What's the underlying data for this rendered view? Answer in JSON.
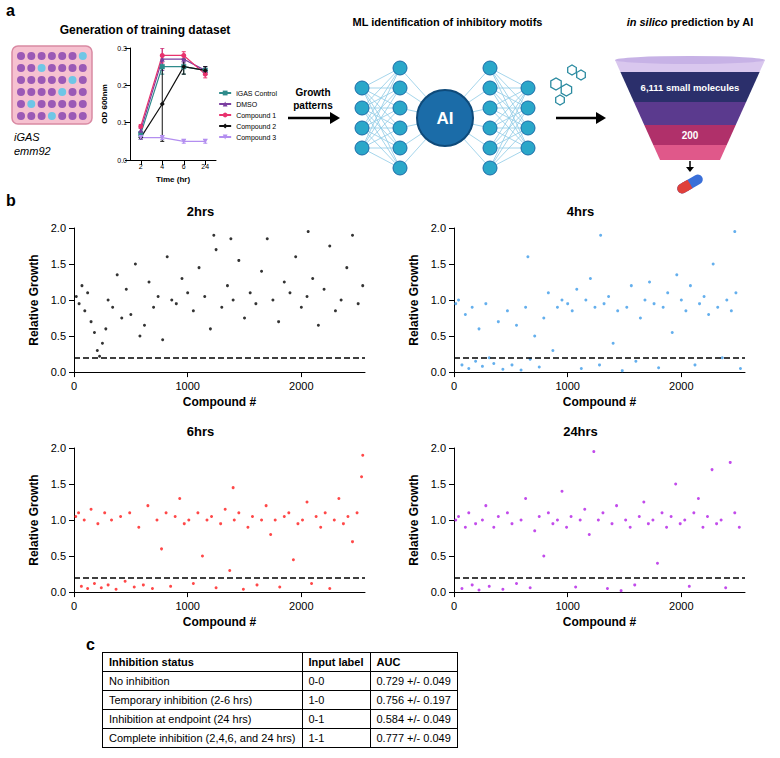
{
  "diagram": {
    "label": "a",
    "training_title": "Generation of training dataset",
    "strain": "iGAS",
    "serotype": "emm92",
    "arrow_text": "Growth patterns",
    "ml_title": "ML identification of inhibitory motifs",
    "ai_label": "AI",
    "prediction_title_italic": "in silico",
    "prediction_title": "prediction by AI",
    "funnel_top": "6,111 small molecules",
    "funnel_bottom": "200"
  },
  "scatter_panel_label": "b",
  "chart_data": [
    {
      "type": "line",
      "x_label": "Time (hr)",
      "y_label": "OD 600nm",
      "categories": [
        "2",
        "4",
        "6",
        "24"
      ],
      "ylim": [
        0,
        0.3
      ],
      "yticks": [
        {
          "value": 0,
          "label": "0.0"
        },
        {
          "value": 0.1,
          "label": "0.1"
        },
        {
          "value": 0.2,
          "label": "0.2"
        },
        {
          "value": 0.3,
          "label": "0.3"
        }
      ],
      "legend": "right",
      "series": [
        {
          "name": "iGAS Control",
          "color": "#2e8b8b",
          "marker": "square",
          "values": [
            0.07,
            0.25,
            0.25,
            0.24
          ],
          "errors": [
            0.005,
            0.02,
            0.02,
            0.01
          ]
        },
        {
          "name": "DMSO",
          "color": "#7b3fa0",
          "marker": "triangle",
          "values": [
            0.08,
            0.27,
            0.27,
            0.24
          ],
          "errors": [
            0.005,
            0.03,
            0.01,
            0.01
          ]
        },
        {
          "name": "Compound 1",
          "color": "#e8336e",
          "marker": "circle",
          "values": [
            0.09,
            0.28,
            0.28,
            0.23
          ],
          "errors": [
            0.005,
            0.02,
            0.01,
            0.01
          ]
        },
        {
          "name": "Compound 2",
          "color": "#111111",
          "marker": "diamond",
          "values": [
            0.06,
            0.15,
            0.25,
            0.24
          ],
          "errors": [
            0.005,
            0.1,
            0.02,
            0.01
          ]
        },
        {
          "name": "Compound 3",
          "color": "#b38ef0",
          "marker": "triangle-down",
          "values": [
            0.06,
            0.06,
            0.05,
            0.05
          ],
          "errors": [
            0.005,
            0.005,
            0.005,
            0.005
          ]
        }
      ]
    },
    {
      "type": "scatter",
      "title": "2hrs",
      "x_label": "Compound #",
      "y_label": "Relative Growth",
      "color": "#000000",
      "marker": "circle",
      "xlim": [
        0,
        2560
      ],
      "xticks": [
        0,
        1000,
        2000
      ],
      "ylim": [
        0,
        2
      ],
      "yticks": [
        {
          "value": 0,
          "label": "0.0"
        },
        {
          "value": 0.5,
          "label": "0.5"
        },
        {
          "value": 1,
          "label": "1.0"
        },
        {
          "value": 1.5,
          "label": "1.5"
        },
        {
          "value": 2,
          "label": "2.0"
        }
      ],
      "threshold": 0.2,
      "values": [
        [
          20,
          1.05
        ],
        [
          45,
          0.95
        ],
        [
          70,
          1.2
        ],
        [
          95,
          0.85
        ],
        [
          120,
          1.1
        ],
        [
          150,
          0.7
        ],
        [
          180,
          0.55
        ],
        [
          205,
          0.3
        ],
        [
          225,
          0.22
        ],
        [
          250,
          0.4
        ],
        [
          280,
          0.6
        ],
        [
          300,
          1.0
        ],
        [
          340,
          0.9
        ],
        [
          380,
          1.35
        ],
        [
          420,
          0.75
        ],
        [
          460,
          1.15
        ],
        [
          500,
          0.8
        ],
        [
          540,
          1.5
        ],
        [
          580,
          0.5
        ],
        [
          620,
          0.65
        ],
        [
          660,
          1.25
        ],
        [
          700,
          0.9
        ],
        [
          740,
          1.05
        ],
        [
          780,
          0.45
        ],
        [
          820,
          1.6
        ],
        [
          860,
          1.0
        ],
        [
          900,
          0.95
        ],
        [
          950,
          1.3
        ],
        [
          1000,
          1.1
        ],
        [
          1050,
          0.85
        ],
        [
          1100,
          1.45
        ],
        [
          1150,
          1.05
        ],
        [
          1200,
          0.6
        ],
        [
          1230,
          1.9
        ],
        [
          1250,
          1.7
        ],
        [
          1300,
          0.9
        ],
        [
          1350,
          1.2
        ],
        [
          1380,
          1.85
        ],
        [
          1400,
          1.0
        ],
        [
          1450,
          1.55
        ],
        [
          1500,
          0.75
        ],
        [
          1550,
          1.1
        ],
        [
          1600,
          0.95
        ],
        [
          1650,
          1.4
        ],
        [
          1700,
          1.85
        ],
        [
          1750,
          1.0
        ],
        [
          1800,
          0.7
        ],
        [
          1850,
          1.25
        ],
        [
          1900,
          1.1
        ],
        [
          1950,
          1.6
        ],
        [
          2000,
          0.9
        ],
        [
          2050,
          1.05
        ],
        [
          2060,
          1.95
        ],
        [
          2100,
          1.3
        ],
        [
          2150,
          0.65
        ],
        [
          2200,
          1.15
        ],
        [
          2250,
          1.75
        ],
        [
          2300,
          0.85
        ],
        [
          2350,
          1.0
        ],
        [
          2400,
          1.45
        ],
        [
          2450,
          1.9
        ],
        [
          2500,
          0.95
        ],
        [
          2540,
          1.2
        ]
      ]
    },
    {
      "type": "scatter",
      "title": "4hrs",
      "x_label": "Compound #",
      "y_label": "Relative Growth",
      "color": "#3d9be9",
      "marker": "circle",
      "xlim": [
        0,
        2560
      ],
      "xticks": [
        0,
        1000,
        2000
      ],
      "ylim": [
        0,
        2
      ],
      "yticks": [
        {
          "value": 0,
          "label": "0.0"
        },
        {
          "value": 0.5,
          "label": "0.5"
        },
        {
          "value": 1,
          "label": "1.0"
        },
        {
          "value": 1.5,
          "label": "1.5"
        },
        {
          "value": 2,
          "label": "2.0"
        }
      ],
      "threshold": 0.2,
      "values": [
        [
          15,
          0.95
        ],
        [
          40,
          1.0
        ],
        [
          70,
          0.1
        ],
        [
          100,
          0.8
        ],
        [
          130,
          0.05
        ],
        [
          160,
          0.9
        ],
        [
          190,
          0.15
        ],
        [
          220,
          0.6
        ],
        [
          250,
          0.08
        ],
        [
          280,
          0.95
        ],
        [
          310,
          0.2
        ],
        [
          350,
          0.12
        ],
        [
          390,
          0.7
        ],
        [
          430,
          0.04
        ],
        [
          470,
          0.85
        ],
        [
          510,
          0.1
        ],
        [
          550,
          0.65
        ],
        [
          590,
          0.03
        ],
        [
          630,
          0.9
        ],
        [
          650,
          1.6
        ],
        [
          670,
          0.18
        ],
        [
          710,
          0.5
        ],
        [
          750,
          0.07
        ],
        [
          790,
          0.75
        ],
        [
          830,
          1.1
        ],
        [
          870,
          0.3
        ],
        [
          910,
          0.9
        ],
        [
          950,
          1.0
        ],
        [
          1000,
          0.95
        ],
        [
          1040,
          0.85
        ],
        [
          1080,
          1.15
        ],
        [
          1120,
          0.05
        ],
        [
          1160,
          1.0
        ],
        [
          1200,
          1.3
        ],
        [
          1240,
          0.9
        ],
        [
          1280,
          0.1
        ],
        [
          1290,
          1.9
        ],
        [
          1320,
          0.95
        ],
        [
          1360,
          1.05
        ],
        [
          1400,
          0.4
        ],
        [
          1440,
          0.85
        ],
        [
          1480,
          0.02
        ],
        [
          1520,
          0.9
        ],
        [
          1560,
          1.2
        ],
        [
          1600,
          0.15
        ],
        [
          1640,
          0.75
        ],
        [
          1680,
          1.0
        ],
        [
          1720,
          1.25
        ],
        [
          1760,
          0.95
        ],
        [
          1800,
          0.06
        ],
        [
          1840,
          0.9
        ],
        [
          1880,
          1.1
        ],
        [
          1920,
          0.55
        ],
        [
          1960,
          1.35
        ],
        [
          2000,
          1.0
        ],
        [
          2040,
          0.85
        ],
        [
          2080,
          1.2
        ],
        [
          2120,
          0.1
        ],
        [
          2160,
          0.95
        ],
        [
          2200,
          1.05
        ],
        [
          2240,
          0.8
        ],
        [
          2280,
          1.5
        ],
        [
          2320,
          0.9
        ],
        [
          2360,
          0.2
        ],
        [
          2400,
          1.0
        ],
        [
          2440,
          0.85
        ],
        [
          2470,
          1.95
        ],
        [
          2480,
          1.1
        ],
        [
          2520,
          0.05
        ]
      ]
    },
    {
      "type": "scatter",
      "title": "6hrs",
      "x_label": "Compound #",
      "y_label": "Relative Growth",
      "color": "#ff1a1a",
      "marker": "circle",
      "xlim": [
        0,
        2560
      ],
      "xticks": [
        0,
        1000,
        2000
      ],
      "ylim": [
        0,
        2
      ],
      "yticks": [
        {
          "value": 0,
          "label": "0.0"
        },
        {
          "value": 0.5,
          "label": "0.5"
        },
        {
          "value": 1,
          "label": "1.0"
        },
        {
          "value": 1.5,
          "label": "1.5"
        },
        {
          "value": 2,
          "label": "2.0"
        }
      ],
      "threshold": 0.2,
      "values": [
        [
          15,
          1.05
        ],
        [
          40,
          1.1
        ],
        [
          65,
          0.08
        ],
        [
          90,
          1.0
        ],
        [
          120,
          0.05
        ],
        [
          150,
          1.15
        ],
        [
          180,
          0.12
        ],
        [
          210,
          0.95
        ],
        [
          240,
          0.06
        ],
        [
          270,
          1.1
        ],
        [
          300,
          0.1
        ],
        [
          330,
          1.0
        ],
        [
          370,
          0.04
        ],
        [
          410,
          1.05
        ],
        [
          450,
          0.15
        ],
        [
          490,
          1.1
        ],
        [
          530,
          0.07
        ],
        [
          570,
          0.9
        ],
        [
          610,
          0.1
        ],
        [
          650,
          1.2
        ],
        [
          690,
          0.05
        ],
        [
          730,
          1.0
        ],
        [
          770,
          0.6
        ],
        [
          810,
          1.1
        ],
        [
          850,
          0.08
        ],
        [
          890,
          1.05
        ],
        [
          930,
          1.3
        ],
        [
          970,
          0.95
        ],
        [
          1010,
          1.0
        ],
        [
          1050,
          0.12
        ],
        [
          1090,
          1.1
        ],
        [
          1130,
          0.5
        ],
        [
          1170,
          1.0
        ],
        [
          1210,
          1.05
        ],
        [
          1250,
          0.06
        ],
        [
          1290,
          0.95
        ],
        [
          1330,
          1.15
        ],
        [
          1370,
          0.3
        ],
        [
          1400,
          1.45
        ],
        [
          1410,
          1.0
        ],
        [
          1450,
          1.1
        ],
        [
          1490,
          0.04
        ],
        [
          1530,
          0.9
        ],
        [
          1570,
          1.05
        ],
        [
          1610,
          0.1
        ],
        [
          1650,
          1.0
        ],
        [
          1690,
          1.2
        ],
        [
          1730,
          0.8
        ],
        [
          1770,
          1.0
        ],
        [
          1810,
          0.07
        ],
        [
          1850,
          1.05
        ],
        [
          1890,
          1.1
        ],
        [
          1930,
          0.45
        ],
        [
          1970,
          0.95
        ],
        [
          2010,
          1.0
        ],
        [
          2050,
          1.25
        ],
        [
          2090,
          0.12
        ],
        [
          2130,
          1.05
        ],
        [
          2170,
          0.9
        ],
        [
          2210,
          1.1
        ],
        [
          2250,
          0.05
        ],
        [
          2290,
          1.0
        ],
        [
          2330,
          1.3
        ],
        [
          2370,
          0.95
        ],
        [
          2410,
          1.05
        ],
        [
          2450,
          0.7
        ],
        [
          2490,
          1.1
        ],
        [
          2530,
          1.6
        ],
        [
          2540,
          1.9
        ]
      ]
    },
    {
      "type": "scatter",
      "title": "24hrs",
      "x_label": "Compound #",
      "y_label": "Relative Growth",
      "color": "#b31ee6",
      "marker": "circle",
      "xlim": [
        0,
        2560
      ],
      "xticks": [
        0,
        1000,
        2000
      ],
      "ylim": [
        0,
        2
      ],
      "yticks": [
        {
          "value": 0,
          "label": "0.0"
        },
        {
          "value": 0.5,
          "label": "0.5"
        },
        {
          "value": 1,
          "label": "1.0"
        },
        {
          "value": 1.5,
          "label": "1.5"
        },
        {
          "value": 2,
          "label": "2.0"
        }
      ],
      "threshold": 0.2,
      "values": [
        [
          15,
          1.0
        ],
        [
          40,
          1.05
        ],
        [
          70,
          0.05
        ],
        [
          100,
          0.9
        ],
        [
          130,
          1.1
        ],
        [
          160,
          0.1
        ],
        [
          190,
          0.95
        ],
        [
          220,
          0.03
        ],
        [
          250,
          1.0
        ],
        [
          280,
          1.2
        ],
        [
          310,
          0.08
        ],
        [
          350,
          0.9
        ],
        [
          390,
          1.05
        ],
        [
          430,
          0.04
        ],
        [
          470,
          1.1
        ],
        [
          510,
          0.95
        ],
        [
          550,
          0.12
        ],
        [
          590,
          1.0
        ],
        [
          630,
          1.3
        ],
        [
          670,
          0.06
        ],
        [
          710,
          0.85
        ],
        [
          750,
          1.05
        ],
        [
          790,
          0.5
        ],
        [
          830,
          1.1
        ],
        [
          870,
          0.95
        ],
        [
          910,
          1.0
        ],
        [
          950,
          1.4
        ],
        [
          990,
          0.9
        ],
        [
          1030,
          1.05
        ],
        [
          1070,
          0.07
        ],
        [
          1110,
          1.0
        ],
        [
          1150,
          1.15
        ],
        [
          1190,
          0.8
        ],
        [
          1230,
          1.95
        ],
        [
          1270,
          1.0
        ],
        [
          1310,
          1.1
        ],
        [
          1350,
          0.05
        ],
        [
          1390,
          0.95
        ],
        [
          1430,
          1.2
        ],
        [
          1470,
          0.02
        ],
        [
          1510,
          1.0
        ],
        [
          1550,
          0.9
        ],
        [
          1590,
          0.1
        ],
        [
          1630,
          1.05
        ],
        [
          1670,
          1.25
        ],
        [
          1710,
          0.95
        ],
        [
          1750,
          1.0
        ],
        [
          1790,
          0.4
        ],
        [
          1830,
          1.1
        ],
        [
          1870,
          0.9
        ],
        [
          1910,
          1.05
        ],
        [
          1950,
          1.5
        ],
        [
          1990,
          0.95
        ],
        [
          2030,
          1.0
        ],
        [
          2070,
          0.08
        ],
        [
          2110,
          1.1
        ],
        [
          2150,
          1.3
        ],
        [
          2190,
          0.9
        ],
        [
          2230,
          1.05
        ],
        [
          2270,
          1.7
        ],
        [
          2310,
          0.95
        ],
        [
          2350,
          1.0
        ],
        [
          2390,
          0.06
        ],
        [
          2430,
          1.8
        ],
        [
          2470,
          1.1
        ],
        [
          2510,
          0.9
        ]
      ]
    }
  ],
  "table": {
    "label": "c",
    "header": [
      "Inhibition status",
      "Input label",
      "AUC"
    ],
    "rows": [
      [
        "No inhibition",
        "0-0",
        "0.729 +/- 0.049"
      ],
      [
        "Temporary inhibition (2-6 hrs)",
        "1-0",
        "0.756 +/- 0.197"
      ],
      [
        "Inhibition at endpoint (24 hrs)",
        "0-1",
        "0.584 +/- 0.049"
      ],
      [
        "Complete inhibition (2,4,6, and 24 hrs)",
        "1-1",
        "0.777 +/- 0.049"
      ]
    ]
  }
}
